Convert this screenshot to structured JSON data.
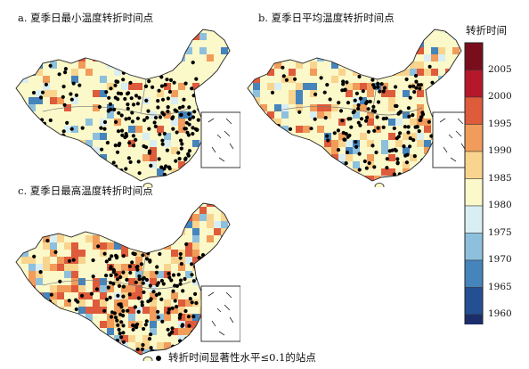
{
  "panels": [
    {
      "id": "a",
      "title": "a. 夏季日最小温度转折时间点"
    },
    {
      "id": "b",
      "title": "b. 夏季日平均温度转折时间点"
    },
    {
      "id": "c",
      "title": "c. 夏季日最高温度转折时间点"
    }
  ],
  "legend": {
    "title": "转折时间",
    "ticks": [
      "2005",
      "2000",
      "1995",
      "1990",
      "1985",
      "1980",
      "1975",
      "1970",
      "1965",
      "1960"
    ],
    "colors": [
      "#7a0d1c",
      "#b5182b",
      "#de5b3b",
      "#f19c5a",
      "#f9d48e",
      "#fbf8c9",
      "#d9eef3",
      "#8dc0dd",
      "#4684bc",
      "#234f93",
      "#1b2e6b"
    ]
  },
  "footnote": "转折时间显著性水平≤0.1的站点"
}
